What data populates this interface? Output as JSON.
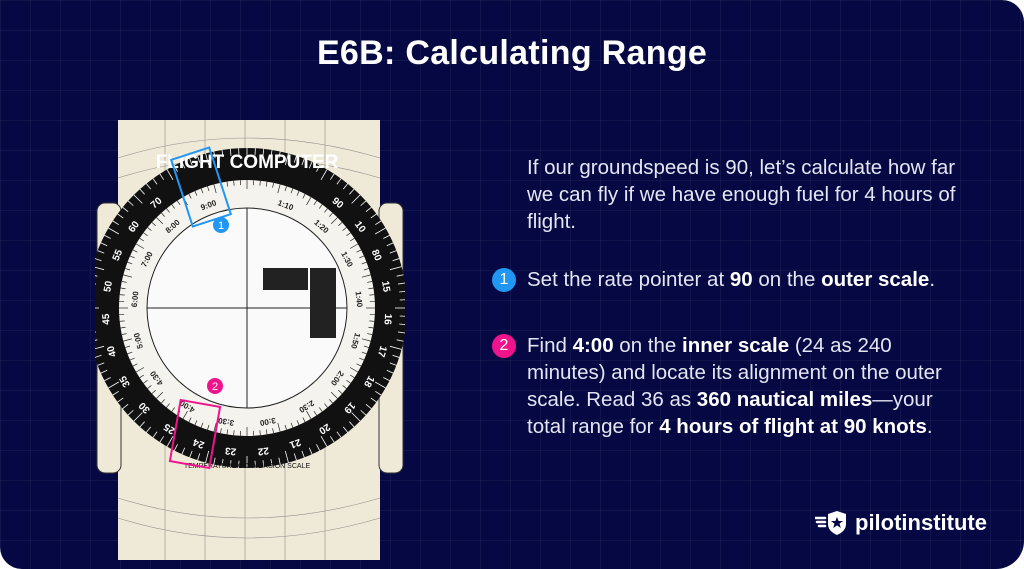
{
  "title": "E6B: Calculating Range",
  "intro": "If our groundspeed is 90, let’s calculate how far we can fly if we have enough fuel for 4 hours of flight.",
  "steps": [
    {
      "number": "1",
      "color": "#2196f3",
      "parts": [
        "Set the rate pointer at ",
        "90",
        " on the ",
        "outer scale",
        "."
      ]
    },
    {
      "number": "2",
      "color": "#f0148c",
      "parts": [
        "Find ",
        "4:00",
        " on the ",
        "inner scale",
        " (24 as 240 minutes) and locate its alignment on the outer scale. Read 36 as ",
        "360 nautical miles",
        "—your total range for ",
        "4 hours of flight at 90 knots",
        "."
      ]
    }
  ],
  "image": {
    "header": "FLIGHT COMPUTER",
    "footer": "TEMPERATURE CONVERSION SCALE",
    "outer_labels": [
      "90",
      "10",
      "80",
      "15",
      "16",
      "17",
      "18",
      "19",
      "20",
      "21",
      "22",
      "23",
      "24",
      "25",
      "30",
      "35",
      "40",
      "45",
      "50",
      "55",
      "60",
      "70"
    ],
    "inner_labels": [
      "1:10",
      "1:20",
      "1:30",
      "1:40",
      "1:50",
      "2:00",
      "2:30",
      "3:00",
      "3:30",
      "4:00",
      "4:30",
      "5:00",
      "6:00",
      "7:00",
      "8:00",
      "9:00"
    ],
    "marker_1": "1",
    "marker_2": "2"
  },
  "brand": {
    "name": "pilotinstitute",
    "icon": "shield-star-wings-icon"
  },
  "colors": {
    "background": "#050842",
    "step1": "#2196f3",
    "step2": "#f0148c"
  }
}
